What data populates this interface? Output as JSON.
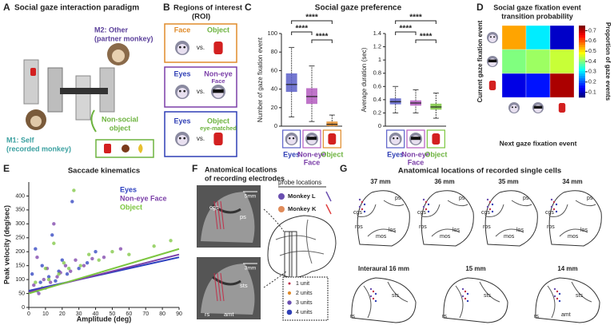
{
  "panel_a": {
    "letter": "A",
    "title": "Social gaze interaction paradigm",
    "partner": [
      "M2: Other",
      "(partner monkey)"
    ],
    "object": [
      "Non-social",
      "object"
    ],
    "self": [
      "M1: Self",
      "(recorded monkey)"
    ]
  },
  "panel_b": {
    "letter": "B",
    "title": [
      "Regions of interest",
      "(ROI)"
    ],
    "vs": "vs.",
    "rows": [
      {
        "left": "Face",
        "right": [
          "Object"
        ]
      },
      {
        "left": "Eyes",
        "right": [
          "Non-eye",
          "Face"
        ]
      },
      {
        "left": "Eyes",
        "right": [
          "Object",
          "eye-matched"
        ]
      }
    ]
  },
  "panel_c": {
    "letter": "C",
    "title": "Social gaze preference",
    "charts": [
      {
        "type": "box",
        "ylabel": "Number of gaze fixation event",
        "ylim": [
          0,
          100
        ],
        "yticks": [
          0,
          20,
          40,
          60,
          80,
          100
        ],
        "categories": [
          [
            "Eyes"
          ],
          [
            "Non-eye",
            "Face"
          ],
          [
            "Object"
          ]
        ],
        "colors": [
          "#5a5fc8",
          "#b45cc0",
          "#e08b2a"
        ],
        "label_colors": [
          "#2f3fb5",
          "#7b3fa8",
          "#6db33f"
        ],
        "boxes": [
          {
            "low": 10,
            "q1": 37,
            "median": 45,
            "q3": 57,
            "high": 85
          },
          {
            "low": 5,
            "q1": 24,
            "median": 32,
            "q3": 41,
            "high": 65
          },
          {
            "low": 0,
            "q1": 0,
            "median": 2,
            "q3": 5,
            "high": 12
          }
        ],
        "significance": [
          "****",
          "****",
          "****"
        ]
      },
      {
        "type": "box",
        "ylabel": "Average duration (sec)",
        "ylim": [
          0,
          1.4
        ],
        "yticks": [
          0,
          0.2,
          0.4,
          0.6,
          0.8,
          1,
          1.2,
          1.4
        ],
        "categories": [
          [
            "Eyes"
          ],
          [
            "Non-eye",
            "Face"
          ],
          [
            "Object"
          ]
        ],
        "colors": [
          "#5a5fc8",
          "#b45cc0",
          "#7cc63f"
        ],
        "label_colors": [
          "#2f3fb5",
          "#7b3fa8",
          "#6db33f"
        ],
        "boxes": [
          {
            "low": 0.2,
            "q1": 0.33,
            "median": 0.37,
            "q3": 0.42,
            "high": 0.6
          },
          {
            "low": 0.2,
            "q1": 0.31,
            "median": 0.35,
            "q3": 0.39,
            "high": 0.55
          },
          {
            "low": 0.12,
            "q1": 0.25,
            "median": 0.29,
            "q3": 0.34,
            "high": 0.5
          }
        ],
        "significance": [
          "****",
          "****",
          "****"
        ]
      }
    ]
  },
  "panel_d": {
    "letter": "D",
    "type": "heatmap",
    "title": [
      "Social gaze fixation event",
      "transition probability"
    ],
    "ylabel": "Current gaze fixation event",
    "xlabel": "Next gaze fixation event",
    "colorbar_label": "Proportion of gaze events",
    "matrix": [
      [
        0.55,
        0.3,
        0.1
      ],
      [
        0.4,
        0.42,
        0.45
      ],
      [
        0.12,
        0.15,
        0.72
      ]
    ],
    "clim": [
      0.05,
      0.75
    ],
    "cticks": [
      0.1,
      0.2,
      0.3,
      0.4,
      0.5,
      0.6,
      0.7
    ]
  },
  "panel_e": {
    "letter": "E",
    "type": "scatter",
    "title": "Saccade kinematics",
    "xlabel": "Amplitude (deg)",
    "ylabel": "Peak velocity (deg/sec)",
    "xlim": [
      0,
      90
    ],
    "ylim": [
      0,
      450
    ],
    "xticks": [
      0,
      10,
      20,
      30,
      40,
      50,
      60,
      70,
      80,
      90
    ],
    "yticks": [
      0,
      50,
      100,
      150,
      200,
      250,
      300,
      350,
      400
    ],
    "series": [
      {
        "name": "Eyes",
        "color": "#2b3fbf",
        "x": [
          2,
          4,
          5,
          7,
          8,
          10,
          12,
          14,
          16,
          18,
          20,
          23,
          26,
          30,
          35,
          40
        ],
        "values": [
          120,
          210,
          60,
          90,
          150,
          70,
          110,
          260,
          95,
          130,
          170,
          120,
          380,
          140,
          160,
          200
        ],
        "fit": {
          "x": [
            0,
            90
          ],
          "y": [
            60,
            180
          ]
        }
      },
      {
        "name": "Non-eye Face",
        "color": "#7b3fa8",
        "x": [
          3,
          5,
          6,
          9,
          11,
          13,
          15,
          17,
          19,
          22,
          25,
          28,
          33,
          38,
          45,
          55
        ],
        "values": [
          80,
          180,
          50,
          100,
          140,
          90,
          300,
          110,
          125,
          150,
          130,
          170,
          150,
          175,
          180,
          210
        ],
        "fit": {
          "x": [
            0,
            90
          ],
          "y": [
            55,
            190
          ]
        }
      },
      {
        "name": "Object",
        "color": "#7cc63f",
        "x": [
          4,
          8,
          10,
          12,
          15,
          18,
          21,
          24,
          27,
          31,
          36,
          42,
          50,
          60,
          75,
          85
        ],
        "values": [
          90,
          70,
          140,
          100,
          230,
          120,
          160,
          140,
          420,
          150,
          190,
          170,
          200,
          190,
          220,
          240
        ],
        "fit": {
          "x": [
            0,
            90
          ],
          "y": [
            50,
            210
          ]
        }
      }
    ]
  },
  "panel_f": {
    "letter": "F",
    "title": [
      "Anatomical locations",
      "of recording electrodes"
    ],
    "probe_title": "probe locations",
    "monkeys": [
      "Monkey L",
      "Monkey K"
    ],
    "scales": [
      "5mm",
      "3mm"
    ],
    "labels_top": [
      "cgs",
      "ps"
    ],
    "labels_bottom": [
      "sts",
      "rs",
      "amt"
    ],
    "units": [
      "1 unit",
      "2 units",
      "3 units",
      "4 units"
    ]
  },
  "panel_g": {
    "letter": "G",
    "title": "Anatomical locations of recorded single cells",
    "top": [
      {
        "label": "37 mm",
        "sulci": [
          "cgs",
          "ps",
          "ros",
          "los",
          "mos"
        ]
      },
      {
        "label": "36 mm",
        "sulci": [
          "cgs",
          "ps",
          "ros",
          "los",
          "mos"
        ]
      },
      {
        "label": "35 mm",
        "sulci": [
          "cgs",
          "ps",
          "ros",
          "los",
          "mos"
        ]
      },
      {
        "label": "34 mm",
        "sulci": [
          "cgs",
          "ps",
          "ros",
          "los",
          "mos"
        ]
      }
    ],
    "bottom": [
      {
        "label": "Interaural 16 mm",
        "sulci": [
          "sts",
          "rs"
        ]
      },
      {
        "label": "15 mm",
        "sulci": [
          "sts",
          "rs"
        ]
      },
      {
        "label": "14 mm",
        "sulci": [
          "sts",
          "rs",
          "amt"
        ]
      }
    ]
  }
}
